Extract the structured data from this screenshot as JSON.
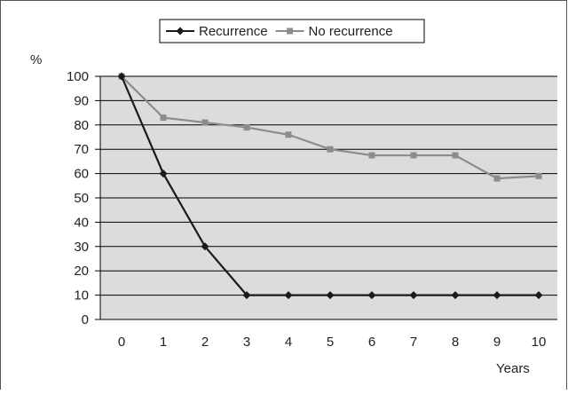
{
  "chart_data": {
    "type": "line",
    "title": "",
    "ylabel": "%",
    "xlabel": "Years",
    "x": [
      0,
      1,
      2,
      3,
      4,
      5,
      6,
      7,
      8,
      9,
      10
    ],
    "ylim": [
      0,
      100
    ],
    "yticks": [
      0,
      10,
      20,
      30,
      40,
      50,
      60,
      70,
      80,
      90,
      100
    ],
    "grid": true,
    "legend_position": "top-center",
    "series": [
      {
        "name": "Recurrence",
        "color": "#1a1a1a",
        "marker": "diamond",
        "values": [
          100,
          60,
          30,
          10,
          10,
          10,
          10,
          10,
          10,
          10,
          10
        ]
      },
      {
        "name": "No recurrence",
        "color": "#8c8c8c",
        "marker": "square",
        "values": [
          100,
          83,
          81,
          79,
          76,
          70,
          67.5,
          67.5,
          67.5,
          58,
          59
        ]
      }
    ],
    "colors": {
      "plot_background": "#dcdcdc",
      "grid": "#000000"
    }
  }
}
